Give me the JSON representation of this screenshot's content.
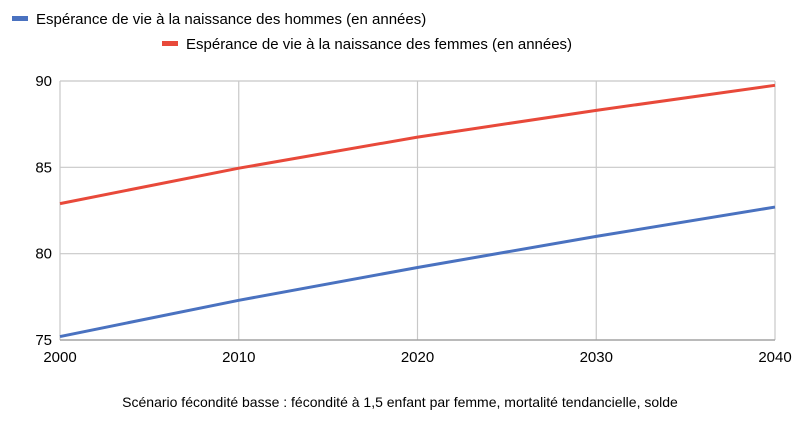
{
  "chart_data": {
    "type": "line",
    "x": [
      2000,
      2010,
      2020,
      2030,
      2040
    ],
    "series": [
      {
        "name": "Espérance de vie à la naissance des hommes (en années)",
        "color": "#4a72c0",
        "values": [
          75.2,
          77.3,
          79.2,
          81.0,
          82.7
        ]
      },
      {
        "name": "Espérance de vie à la naissance des femmes (en années)",
        "color": "#e8493a",
        "values": [
          82.9,
          84.95,
          86.75,
          88.3,
          89.75
        ]
      }
    ],
    "xlim": [
      2000,
      2040
    ],
    "ylim": [
      75,
      90
    ],
    "x_ticks": [
      2000,
      2010,
      2020,
      2030,
      2040
    ],
    "y_ticks": [
      75,
      80,
      85,
      90
    ],
    "grid": true,
    "legend_position": "top",
    "caption": "Scénario fécondité basse : fécondité à 1,5 enfant par femme, mortalité tendancielle, solde"
  }
}
